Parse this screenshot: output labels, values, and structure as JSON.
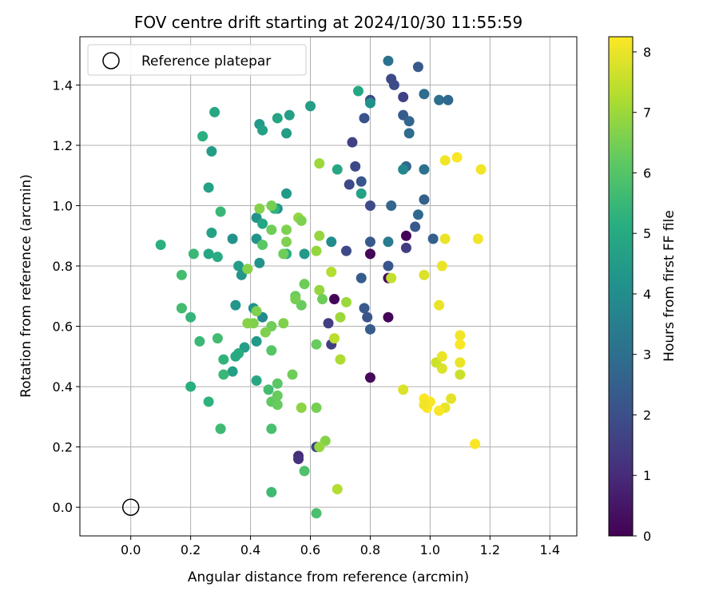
{
  "chart_data": {
    "type": "scatter",
    "title": "FOV centre drift starting at 2024/10/30 11:55:59",
    "xlabel": "Angular distance from reference (arcmin)",
    "ylabel": "Rotation from reference (arcmin)",
    "xlim": [
      -0.17,
      1.49
    ],
    "ylim": [
      -0.095,
      1.56
    ],
    "xticks": [
      0.0,
      0.2,
      0.4,
      0.6,
      0.8,
      1.0,
      1.2,
      1.4
    ],
    "xtick_labels": [
      "0.0",
      "0.2",
      "0.4",
      "0.6",
      "0.8",
      "1.0",
      "1.2",
      "1.4"
    ],
    "yticks": [
      0.0,
      0.2,
      0.4,
      0.6,
      0.8,
      1.0,
      1.2,
      1.4
    ],
    "ytick_labels": [
      "0.0",
      "0.2",
      "0.4",
      "0.6",
      "0.8",
      "1.0",
      "1.2",
      "1.4"
    ],
    "grid": true,
    "legend": {
      "position": "top-left",
      "entries": [
        "Reference platepar"
      ]
    },
    "reference_point": {
      "x": 0.0,
      "y": 0.0
    },
    "colorbar": {
      "label": "Hours from first FF file",
      "range": [
        0,
        8.25
      ],
      "ticks": [
        0,
        1,
        2,
        3,
        4,
        5,
        6,
        7,
        8
      ],
      "tick_labels": [
        "0",
        "1",
        "2",
        "3",
        "4",
        "5",
        "6",
        "7",
        "8"
      ],
      "colormap": "viridis"
    },
    "point_fields": [
      "x",
      "y",
      "hours"
    ],
    "points": [
      [
        0.92,
        0.9,
        0.1
      ],
      [
        0.8,
        0.84,
        0.15
      ],
      [
        0.68,
        0.69,
        0.1
      ],
      [
        0.86,
        0.63,
        0.1
      ],
      [
        0.8,
        0.43,
        0.2
      ],
      [
        0.86,
        0.76,
        0.3
      ],
      [
        0.92,
        0.86,
        1.5
      ],
      [
        0.56,
        0.17,
        1.0
      ],
      [
        0.56,
        0.16,
        1.2
      ],
      [
        0.62,
        0.2,
        1.7
      ],
      [
        0.67,
        0.54,
        1.5
      ],
      [
        0.66,
        0.61,
        1.5
      ],
      [
        0.73,
        1.07,
        1.8
      ],
      [
        0.74,
        1.21,
        1.6
      ],
      [
        0.75,
        1.13,
        1.8
      ],
      [
        0.72,
        0.85,
        1.8
      ],
      [
        0.8,
        1.0,
        1.9
      ],
      [
        0.8,
        0.88,
        2.3
      ],
      [
        0.86,
        0.8,
        2.2
      ],
      [
        0.78,
        0.66,
        2.3
      ],
      [
        0.79,
        0.63,
        2.2
      ],
      [
        0.8,
        0.59,
        2.4
      ],
      [
        0.77,
        0.76,
        2.4
      ],
      [
        0.77,
        1.08,
        2.2
      ],
      [
        0.78,
        1.29,
        2.1
      ],
      [
        0.8,
        1.35,
        1.9
      ],
      [
        0.87,
        1.42,
        1.8
      ],
      [
        0.88,
        1.4,
        1.9
      ],
      [
        0.91,
        1.36,
        1.6
      ],
      [
        0.91,
        1.3,
        2.4
      ],
      [
        0.93,
        1.28,
        2.7
      ],
      [
        0.93,
        1.24,
        2.9
      ],
      [
        0.96,
        1.46,
        2.3
      ],
      [
        0.98,
        1.37,
        2.9
      ],
      [
        0.86,
        1.48,
        3.1
      ],
      [
        0.92,
        1.13,
        2.7
      ],
      [
        0.91,
        1.12,
        3.8
      ],
      [
        0.98,
        1.12,
        3.1
      ],
      [
        0.98,
        1.02,
        2.5
      ],
      [
        0.96,
        0.97,
        2.8
      ],
      [
        0.95,
        0.93,
        2.3
      ],
      [
        1.01,
        0.89,
        2.5
      ],
      [
        0.87,
        1.0,
        2.7
      ],
      [
        0.86,
        0.88,
        3.4
      ],
      [
        1.03,
        1.35,
        3.0
      ],
      [
        1.06,
        1.35,
        2.8
      ],
      [
        0.8,
        1.34,
        4.1
      ],
      [
        0.76,
        1.38,
        4.9
      ],
      [
        0.67,
        0.88,
        4.0
      ],
      [
        0.69,
        1.12,
        4.9
      ],
      [
        0.77,
        1.04,
        4.7
      ],
      [
        0.6,
        1.33,
        4.6
      ],
      [
        0.53,
        1.3,
        4.6
      ],
      [
        0.49,
        1.29,
        4.8
      ],
      [
        0.43,
        1.27,
        4.4
      ],
      [
        0.44,
        1.25,
        4.7
      ],
      [
        0.52,
        1.24,
        4.5
      ],
      [
        0.28,
        1.31,
        4.9
      ],
      [
        0.27,
        1.18,
        4.5
      ],
      [
        0.24,
        1.23,
        5.2
      ],
      [
        0.26,
        1.06,
        4.7
      ],
      [
        0.3,
        0.98,
        5.5
      ],
      [
        0.27,
        0.91,
        4.7
      ],
      [
        0.34,
        0.89,
        4.2
      ],
      [
        0.42,
        0.96,
        4.2
      ],
      [
        0.49,
        0.99,
        4.2
      ],
      [
        0.52,
        1.04,
        4.4
      ],
      [
        0.48,
        0.99,
        5.3
      ],
      [
        0.44,
        0.94,
        4.9
      ],
      [
        0.42,
        0.89,
        4.2
      ],
      [
        0.43,
        0.81,
        4.2
      ],
      [
        0.44,
        0.63,
        3.9
      ],
      [
        0.41,
        0.66,
        4.2
      ],
      [
        0.58,
        0.84,
        4.4
      ],
      [
        0.52,
        0.84,
        5.1
      ],
      [
        0.36,
        0.8,
        4.5
      ],
      [
        0.37,
        0.77,
        4.3
      ],
      [
        0.26,
        0.84,
        4.9
      ],
      [
        0.29,
        0.83,
        5.1
      ],
      [
        0.21,
        0.84,
        5.5
      ],
      [
        0.1,
        0.87,
        5.2
      ],
      [
        0.17,
        0.77,
        5.7
      ],
      [
        0.17,
        0.66,
        5.8
      ],
      [
        0.17,
        0.66,
        5.7
      ],
      [
        0.2,
        0.63,
        5.4
      ],
      [
        0.35,
        0.67,
        4.3
      ],
      [
        0.42,
        0.55,
        4.4
      ],
      [
        0.38,
        0.53,
        4.6
      ],
      [
        0.36,
        0.51,
        5.1
      ],
      [
        0.35,
        0.5,
        5.0
      ],
      [
        0.31,
        0.49,
        5.3
      ],
      [
        0.34,
        0.45,
        4.6
      ],
      [
        0.31,
        0.44,
        5.5
      ],
      [
        0.42,
        0.42,
        4.9
      ],
      [
        0.2,
        0.4,
        5.2
      ],
      [
        0.23,
        0.55,
        5.5
      ],
      [
        0.29,
        0.56,
        5.7
      ],
      [
        0.26,
        0.35,
        5.3
      ],
      [
        0.3,
        0.26,
        5.3
      ],
      [
        0.3,
        0.26,
        5.6
      ],
      [
        0.47,
        0.05,
        5.6
      ],
      [
        0.62,
        -0.02,
        5.8
      ],
      [
        0.58,
        0.12,
        5.9
      ],
      [
        0.47,
        0.26,
        5.8
      ],
      [
        0.46,
        0.39,
        5.7
      ],
      [
        0.47,
        0.35,
        6.2
      ],
      [
        0.49,
        0.34,
        6.3
      ],
      [
        0.49,
        0.37,
        6.3
      ],
      [
        0.49,
        0.41,
        6.1
      ],
      [
        0.47,
        0.52,
        6.0
      ],
      [
        0.47,
        0.6,
        6.4
      ],
      [
        0.51,
        0.61,
        6.6
      ],
      [
        0.45,
        0.58,
        6.6
      ],
      [
        0.41,
        0.61,
        6.6
      ],
      [
        0.39,
        0.61,
        6.7
      ],
      [
        0.39,
        0.79,
        6.7
      ],
      [
        0.42,
        0.65,
        6.6
      ],
      [
        0.47,
        0.92,
        6.4
      ],
      [
        0.51,
        0.84,
        6.4
      ],
      [
        0.44,
        0.87,
        6.1
      ],
      [
        0.43,
        0.99,
        6.7
      ],
      [
        0.47,
        1.0,
        6.5
      ],
      [
        0.52,
        0.88,
        6.6
      ],
      [
        0.52,
        0.92,
        6.6
      ],
      [
        0.56,
        0.96,
        6.9
      ],
      [
        0.57,
        0.95,
        6.6
      ],
      [
        0.57,
        0.67,
        6.3
      ],
      [
        0.55,
        0.7,
        6.3
      ],
      [
        0.55,
        0.69,
        6.5
      ],
      [
        0.58,
        0.74,
        6.4
      ],
      [
        0.62,
        0.54,
        6.3
      ],
      [
        0.63,
        0.72,
        6.9
      ],
      [
        0.62,
        0.85,
        6.9
      ],
      [
        0.63,
        0.9,
        6.9
      ],
      [
        0.63,
        1.14,
        7.0
      ],
      [
        0.64,
        0.69,
        6.4
      ],
      [
        0.67,
        0.78,
        7.3
      ],
      [
        0.68,
        0.56,
        7.4
      ],
      [
        0.72,
        0.68,
        7.0
      ],
      [
        0.7,
        0.63,
        7.0
      ],
      [
        0.7,
        0.49,
        7.2
      ],
      [
        0.69,
        0.06,
        7.3
      ],
      [
        0.65,
        0.22,
        6.7
      ],
      [
        0.63,
        0.2,
        6.9
      ],
      [
        0.57,
        0.33,
        6.8
      ],
      [
        0.62,
        0.33,
        6.5
      ],
      [
        0.54,
        0.44,
        6.4
      ],
      [
        0.87,
        0.76,
        7.5
      ],
      [
        0.98,
        0.77,
        7.8
      ],
      [
        0.91,
        0.39,
        7.8
      ],
      [
        1.02,
        0.48,
        7.6
      ],
      [
        1.03,
        0.67,
        8.0
      ],
      [
        1.04,
        0.8,
        8.0
      ],
      [
        1.05,
        0.89,
        8.0
      ],
      [
        1.05,
        1.15,
        8.1
      ],
      [
        1.09,
        1.16,
        8.2
      ],
      [
        1.17,
        1.12,
        8.1
      ],
      [
        1.16,
        0.89,
        8.1
      ],
      [
        1.1,
        0.57,
        8.1
      ],
      [
        1.1,
        0.54,
        8.2
      ],
      [
        1.1,
        0.48,
        8.0
      ],
      [
        1.1,
        0.44,
        7.6
      ],
      [
        1.04,
        0.5,
        8.0
      ],
      [
        1.04,
        0.46,
        7.8
      ],
      [
        1.07,
        0.36,
        7.9
      ],
      [
        1.05,
        0.33,
        8.0
      ],
      [
        1.03,
        0.32,
        8.2
      ],
      [
        1.0,
        0.35,
        8.2
      ],
      [
        0.98,
        0.36,
        8.3
      ],
      [
        0.99,
        0.33,
        8.3
      ],
      [
        0.98,
        0.34,
        8.1
      ],
      [
        1.15,
        0.21,
        8.2
      ]
    ]
  }
}
